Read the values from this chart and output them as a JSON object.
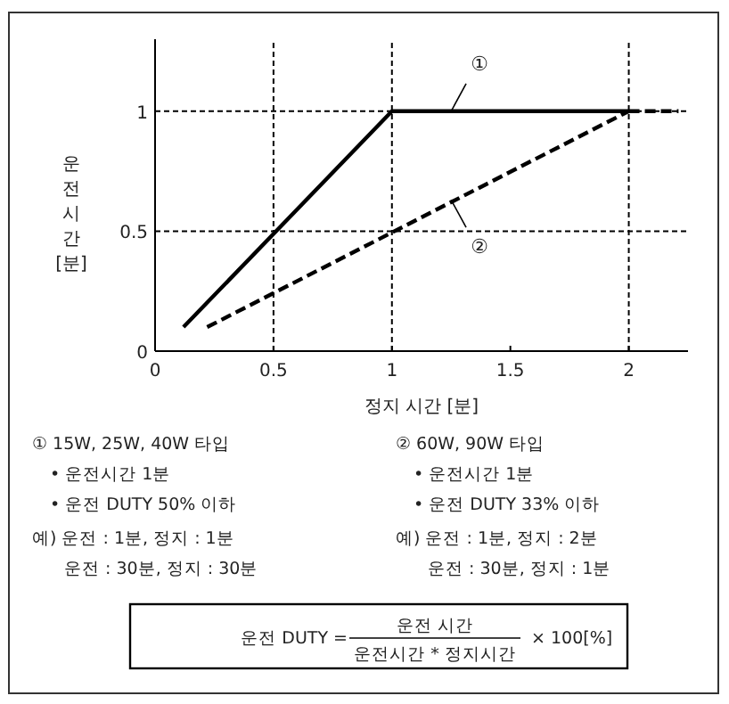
{
  "chart_data": {
    "type": "line",
    "xlabel": "정지 시간 [분]",
    "ylabel": "운전시간[분]",
    "xlim": [
      0,
      2.25
    ],
    "ylim": [
      0,
      1.3
    ],
    "xticks": [
      0,
      0.5,
      1,
      1.5,
      2
    ],
    "yticks": [
      0,
      0.5,
      1
    ],
    "grid": false,
    "series": [
      {
        "color": "#000000",
        "line_style": "solid",
        "x": [
          0.12,
          1,
          2
        ],
        "values": [
          0.1,
          1,
          1
        ]
      },
      {
        "color": "#000000",
        "line_style": "dashed",
        "x": [
          2,
          2.21
        ],
        "values": [
          1,
          1
        ]
      },
      {
        "color": "#000000",
        "line_style": "dashed",
        "x": [
          0.22,
          2
        ],
        "values": [
          0.1,
          1
        ]
      }
    ],
    "ref_lines": [
      {
        "axis": "x",
        "value": 0.5
      },
      {
        "axis": "x",
        "value": 1
      },
      {
        "axis": "x",
        "value": 2
      },
      {
        "axis": "y",
        "value": 0.5
      },
      {
        "axis": "y",
        "value": 1
      }
    ],
    "annotations": [
      {
        "text": "①",
        "x": 1.25,
        "y": 1
      },
      {
        "text": "②",
        "x": 1.25,
        "y": 0.63
      },
      "① 15W, 25W, 40W 타입",
      "• 운전시간 1분",
      "• 운전 DUTY 50% 이하",
      "예) 운전 : 1분, 정지 : 1분",
      "운전 : 30분, 정지 : 30분",
      "② 60W, 90W 타입",
      "• 운전시간 1분",
      "• 운전 DUTY 33% 이하",
      "예) 운전 : 1분, 정지 : 2분",
      "운전 : 30분, 정지 : 1분",
      "운전 DUTY =",
      "운전 시간",
      "운전시간 * 정지시간",
      "× 100[%]"
    ]
  }
}
